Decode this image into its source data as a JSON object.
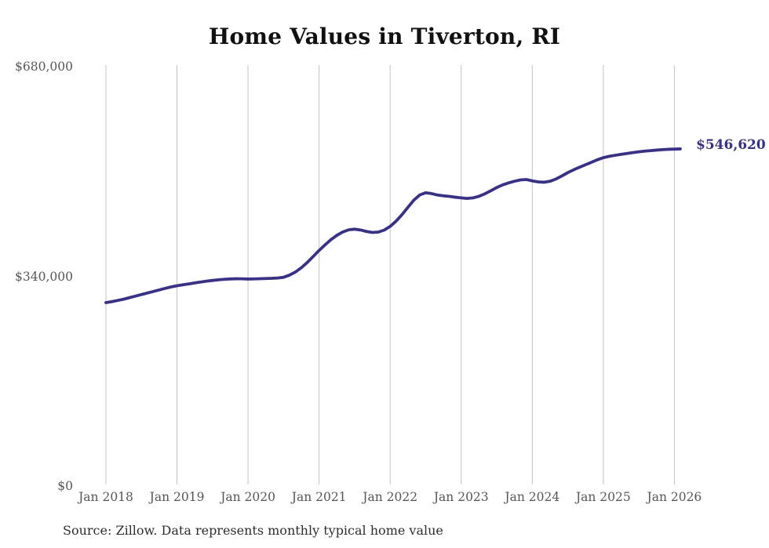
{
  "title": "Home Values in Tiverton, RI",
  "source_note": "Source: Zillow. Data represents monthly typical home value",
  "colors": {
    "line": "#37308f",
    "grid": "#c4c4c4",
    "axis_text": "#565656",
    "title_text": "#111111",
    "end_label_text": "#37308f",
    "background": "#ffffff"
  },
  "chart_data": {
    "type": "line",
    "title": "Home Values in Tiverton, RI",
    "xlabel": "",
    "ylabel": "",
    "ylim": [
      0,
      680000
    ],
    "grid": "vertical-only",
    "legend": "none",
    "x_start_month": "2018-01",
    "x_end_month": "2026-02",
    "x_tick_labels": [
      "Jan 2018",
      "Jan 2019",
      "Jan 2020",
      "Jan 2021",
      "Jan 2022",
      "Jan 2023",
      "Jan 2024",
      "Jan 2025",
      "Jan 2026"
    ],
    "y_ticks": [
      {
        "value": 0,
        "label": "$0"
      },
      {
        "value": 340000,
        "label": "$340,000"
      },
      {
        "value": 680000,
        "label": "$680,000"
      }
    ],
    "latest_value": 546620,
    "latest_value_label": "$546,620",
    "series": [
      {
        "name": "Monthly typical home value",
        "unit": "USD",
        "values": [
          297500,
          299000,
          301000,
          303000,
          305500,
          308000,
          310500,
          313000,
          315500,
          318000,
          320500,
          322800,
          324800,
          326300,
          327800,
          329300,
          330800,
          332200,
          333400,
          334400,
          335200,
          335800,
          336100,
          336000,
          335600,
          335900,
          336200,
          336500,
          336800,
          337300,
          338500,
          342000,
          347000,
          354000,
          362500,
          372200,
          382000,
          391000,
          399500,
          406500,
          412000,
          415500,
          416500,
          415200,
          412800,
          411200,
          411800,
          415000,
          421000,
          429500,
          440000,
          452000,
          463500,
          472000,
          475500,
          474200,
          471800,
          470600,
          469600,
          468300,
          467200,
          466300,
          467200,
          469800,
          473800,
          478800,
          484000,
          488300,
          491500,
          494200,
          496300,
          497000,
          494800,
          493200,
          492600,
          494200,
          497800,
          502800,
          508200,
          512800,
          517000,
          521000,
          525000,
          529000,
          532400,
          534600,
          536300,
          537800,
          539200,
          540600,
          541900,
          543000,
          543900,
          544700,
          545400,
          546000,
          546300,
          546620
        ]
      }
    ]
  }
}
